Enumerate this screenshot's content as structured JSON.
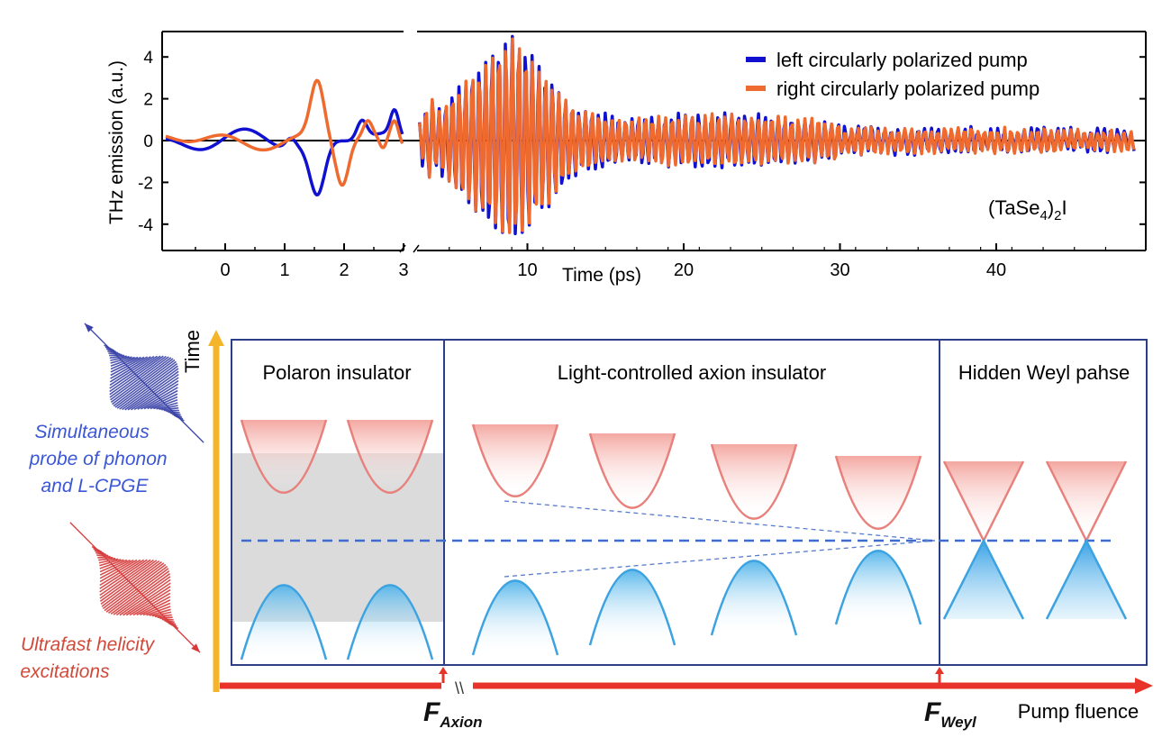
{
  "top_chart": {
    "chart_data": {
      "type": "line",
      "xlabel": "Time (ps)",
      "ylabel": "THz emission (a.u.)",
      "ylim": [
        -5,
        5
      ],
      "xlim_segment1": [
        -1,
        3
      ],
      "xlim_segment2": [
        3,
        49
      ],
      "yticks": [
        "4",
        "2",
        "0",
        "-2",
        "-4"
      ],
      "xticks_segment1": [
        "0",
        "1",
        "2",
        "3"
      ],
      "xticks_segment2": [
        "10",
        "20",
        "30",
        "40"
      ],
      "grid": false,
      "legend_position": "top-right",
      "series": [
        {
          "name": "left circularly polarized pump",
          "color": "#1010d0"
        },
        {
          "name": "right circularly polarized pump",
          "color": "#ee6a2e"
        }
      ],
      "annotation": {
        "base": "(TaSe",
        "sub1": "4",
        "mid": ")",
        "sub2": "2",
        "tail": "I"
      }
    }
  },
  "diagram": {
    "axis_time": "Time",
    "axis_fluence": "Pump fluence",
    "break_mark": "\\\\",
    "panels": [
      {
        "title": "Polaron insulator"
      },
      {
        "title": "Light-controlled axion insulator"
      },
      {
        "title": "Hidden Weyl pahse"
      }
    ],
    "markers": {
      "axion": {
        "main": "F",
        "sub": "Axion"
      },
      "weyl": {
        "main": "F",
        "sub": "Weyl"
      }
    },
    "left_labels": {
      "probe": [
        "Simultaneous",
        "probe of phonon",
        "and L-CPGE"
      ],
      "excitation": [
        "Ultrafast helicity",
        "excitations"
      ]
    },
    "colors": {
      "conduction": "#e8817c",
      "valence": "#3da3e0",
      "frame": "#2c3f86",
      "axis_time": "#f5b52b",
      "axis_fluence": "#e8332a",
      "probe": "#3a43a8",
      "excitation": "#d63a3a"
    }
  }
}
